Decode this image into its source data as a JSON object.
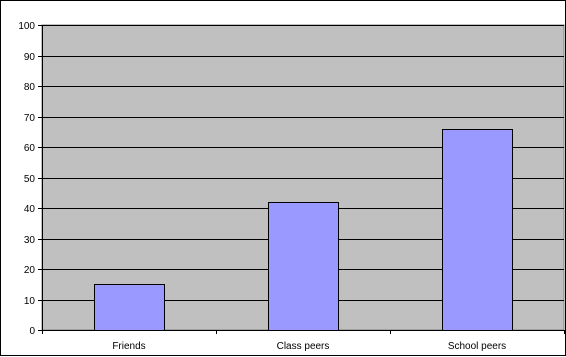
{
  "chart_data": {
    "type": "bar",
    "categories": [
      "Friends",
      "Class peers",
      "School peers"
    ],
    "values": [
      15,
      42,
      66
    ],
    "ylim": [
      0,
      100
    ],
    "yticks": [
      0,
      10,
      20,
      30,
      40,
      50,
      60,
      70,
      80,
      90,
      100
    ],
    "grid": true,
    "legend": "none",
    "colors": {
      "plot_background": "#c0c0c0",
      "bar_fill": "#9999ff",
      "bar_stroke": "#000000",
      "gridline": "#000000"
    }
  }
}
